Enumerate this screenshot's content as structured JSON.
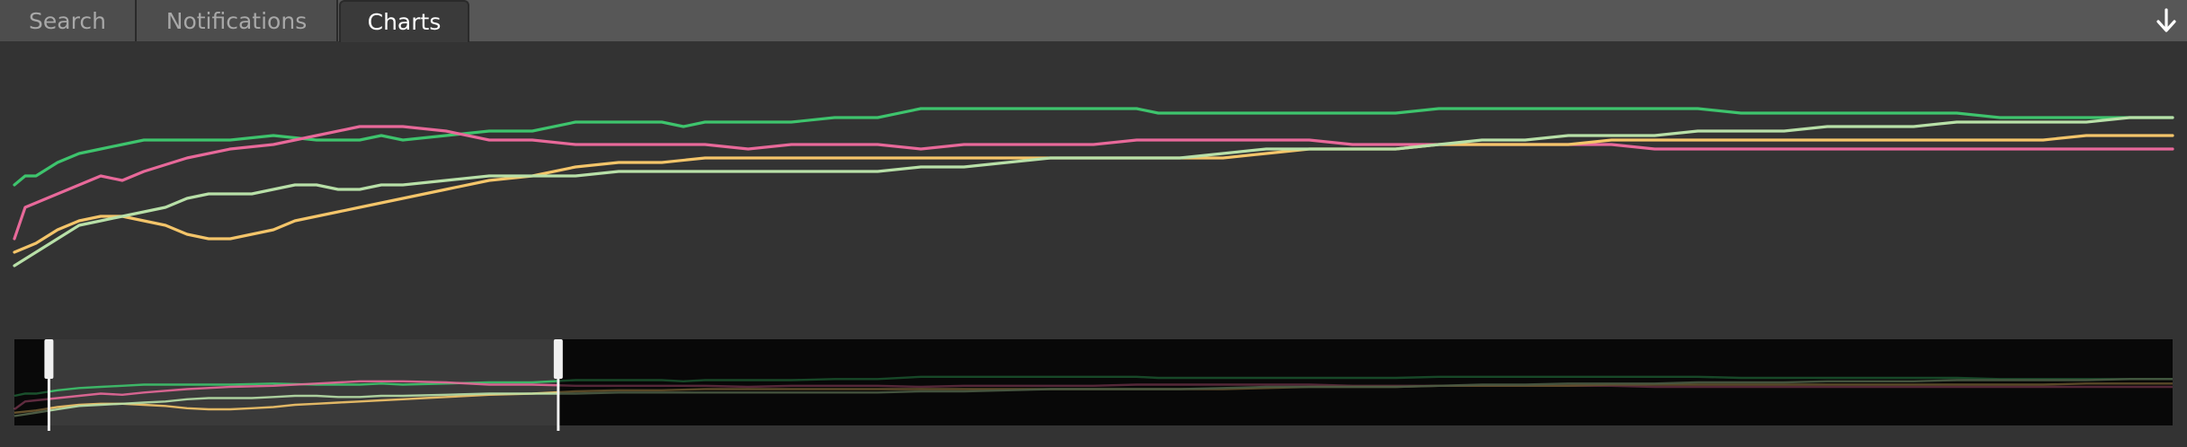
{
  "tabs": [
    {
      "label": "Search",
      "active": false
    },
    {
      "label": "Notifications",
      "active": false
    },
    {
      "label": "Charts",
      "active": true
    }
  ],
  "toolbar": {
    "download_icon": "arrow-down-icon"
  },
  "colors": {
    "background": "#333333",
    "tab_bar": "#575757",
    "overview_bg": "#161616",
    "handle": "#f0f0f0"
  },
  "chart_data": {
    "type": "line",
    "title": "",
    "xlabel": "",
    "ylabel": "",
    "x_range": [
      0,
      100
    ],
    "ylim": [
      0,
      100
    ],
    "grid": false,
    "legend": "none",
    "series": [
      {
        "color": "#3ec46d",
        "points": [
          [
            0,
            70
          ],
          [
            0.5,
            72
          ],
          [
            1,
            72
          ],
          [
            2,
            75
          ],
          [
            3,
            77
          ],
          [
            4,
            78
          ],
          [
            5,
            79
          ],
          [
            6,
            80
          ],
          [
            8,
            80
          ],
          [
            10,
            80
          ],
          [
            12,
            81
          ],
          [
            14,
            80
          ],
          [
            16,
            80
          ],
          [
            17,
            81
          ],
          [
            18,
            80
          ],
          [
            20,
            81
          ],
          [
            22,
            82
          ],
          [
            24,
            82
          ],
          [
            26,
            84
          ],
          [
            28,
            84
          ],
          [
            30,
            84
          ],
          [
            31,
            83
          ],
          [
            32,
            84
          ],
          [
            34,
            84
          ],
          [
            36,
            84
          ],
          [
            38,
            85
          ],
          [
            40,
            85
          ],
          [
            42,
            87
          ],
          [
            44,
            87
          ],
          [
            46,
            87
          ],
          [
            48,
            87
          ],
          [
            50,
            87
          ],
          [
            52,
            87
          ],
          [
            53,
            86
          ],
          [
            54,
            86
          ],
          [
            56,
            86
          ],
          [
            58,
            86
          ],
          [
            60,
            86
          ],
          [
            62,
            86
          ],
          [
            64,
            86
          ],
          [
            66,
            87
          ],
          [
            68,
            87
          ],
          [
            70,
            87
          ],
          [
            72,
            87
          ],
          [
            74,
            87
          ],
          [
            76,
            87
          ],
          [
            78,
            87
          ],
          [
            80,
            86
          ],
          [
            82,
            86
          ],
          [
            84,
            86
          ],
          [
            86,
            86
          ],
          [
            88,
            86
          ],
          [
            90,
            86
          ],
          [
            92,
            85
          ],
          [
            94,
            85
          ],
          [
            96,
            85
          ],
          [
            98,
            85
          ],
          [
            100,
            85
          ]
        ]
      },
      {
        "color": "#e8699a",
        "points": [
          [
            0,
            58
          ],
          [
            0.5,
            65
          ],
          [
            1,
            66
          ],
          [
            2,
            68
          ],
          [
            3,
            70
          ],
          [
            4,
            72
          ],
          [
            5,
            71
          ],
          [
            6,
            73
          ],
          [
            8,
            76
          ],
          [
            10,
            78
          ],
          [
            12,
            79
          ],
          [
            14,
            81
          ],
          [
            16,
            83
          ],
          [
            18,
            83
          ],
          [
            20,
            82
          ],
          [
            22,
            80
          ],
          [
            24,
            80
          ],
          [
            26,
            79
          ],
          [
            28,
            79
          ],
          [
            30,
            79
          ],
          [
            32,
            79
          ],
          [
            34,
            78
          ],
          [
            36,
            79
          ],
          [
            38,
            79
          ],
          [
            40,
            79
          ],
          [
            42,
            78
          ],
          [
            44,
            79
          ],
          [
            46,
            79
          ],
          [
            48,
            79
          ],
          [
            50,
            79
          ],
          [
            52,
            80
          ],
          [
            54,
            80
          ],
          [
            56,
            80
          ],
          [
            58,
            80
          ],
          [
            60,
            80
          ],
          [
            62,
            79
          ],
          [
            64,
            79
          ],
          [
            66,
            79
          ],
          [
            68,
            79
          ],
          [
            70,
            79
          ],
          [
            72,
            79
          ],
          [
            74,
            79
          ],
          [
            76,
            78
          ],
          [
            78,
            78
          ],
          [
            80,
            78
          ],
          [
            82,
            78
          ],
          [
            84,
            78
          ],
          [
            86,
            78
          ],
          [
            88,
            78
          ],
          [
            90,
            78
          ],
          [
            92,
            78
          ],
          [
            94,
            78
          ],
          [
            96,
            78
          ],
          [
            98,
            78
          ],
          [
            100,
            78
          ]
        ]
      },
      {
        "color": "#f4c56a",
        "points": [
          [
            0,
            55
          ],
          [
            1,
            57
          ],
          [
            2,
            60
          ],
          [
            3,
            62
          ],
          [
            4,
            63
          ],
          [
            5,
            63
          ],
          [
            6,
            62
          ],
          [
            7,
            61
          ],
          [
            8,
            59
          ],
          [
            9,
            58
          ],
          [
            10,
            58
          ],
          [
            11,
            59
          ],
          [
            12,
            60
          ],
          [
            13,
            62
          ],
          [
            14,
            63
          ],
          [
            15,
            64
          ],
          [
            16,
            65
          ],
          [
            17,
            66
          ],
          [
            18,
            67
          ],
          [
            19,
            68
          ],
          [
            20,
            69
          ],
          [
            22,
            71
          ],
          [
            24,
            72
          ],
          [
            26,
            74
          ],
          [
            28,
            75
          ],
          [
            30,
            75
          ],
          [
            32,
            76
          ],
          [
            34,
            76
          ],
          [
            36,
            76
          ],
          [
            38,
            76
          ],
          [
            40,
            76
          ],
          [
            42,
            76
          ],
          [
            44,
            76
          ],
          [
            46,
            76
          ],
          [
            48,
            76
          ],
          [
            50,
            76
          ],
          [
            52,
            76
          ],
          [
            54,
            76
          ],
          [
            56,
            76
          ],
          [
            58,
            77
          ],
          [
            60,
            78
          ],
          [
            62,
            78
          ],
          [
            64,
            78
          ],
          [
            66,
            79
          ],
          [
            68,
            79
          ],
          [
            70,
            79
          ],
          [
            72,
            79
          ],
          [
            74,
            80
          ],
          [
            76,
            80
          ],
          [
            78,
            80
          ],
          [
            80,
            80
          ],
          [
            82,
            80
          ],
          [
            84,
            80
          ],
          [
            86,
            80
          ],
          [
            88,
            80
          ],
          [
            90,
            80
          ],
          [
            92,
            80
          ],
          [
            94,
            80
          ],
          [
            96,
            81
          ],
          [
            98,
            81
          ],
          [
            100,
            81
          ]
        ]
      },
      {
        "color": "#b8e0a8",
        "points": [
          [
            0,
            52
          ],
          [
            1,
            55
          ],
          [
            2,
            58
          ],
          [
            3,
            61
          ],
          [
            4,
            62
          ],
          [
            5,
            63
          ],
          [
            6,
            64
          ],
          [
            7,
            65
          ],
          [
            8,
            67
          ],
          [
            9,
            68
          ],
          [
            10,
            68
          ],
          [
            11,
            68
          ],
          [
            12,
            69
          ],
          [
            13,
            70
          ],
          [
            14,
            70
          ],
          [
            15,
            69
          ],
          [
            16,
            69
          ],
          [
            17,
            70
          ],
          [
            18,
            70
          ],
          [
            20,
            71
          ],
          [
            22,
            72
          ],
          [
            24,
            72
          ],
          [
            26,
            72
          ],
          [
            28,
            73
          ],
          [
            30,
            73
          ],
          [
            32,
            73
          ],
          [
            34,
            73
          ],
          [
            36,
            73
          ],
          [
            38,
            73
          ],
          [
            40,
            73
          ],
          [
            42,
            74
          ],
          [
            44,
            74
          ],
          [
            46,
            75
          ],
          [
            48,
            76
          ],
          [
            50,
            76
          ],
          [
            52,
            76
          ],
          [
            54,
            76
          ],
          [
            56,
            77
          ],
          [
            58,
            78
          ],
          [
            60,
            78
          ],
          [
            62,
            78
          ],
          [
            64,
            78
          ],
          [
            66,
            79
          ],
          [
            68,
            80
          ],
          [
            70,
            80
          ],
          [
            72,
            81
          ],
          [
            74,
            81
          ],
          [
            76,
            81
          ],
          [
            78,
            82
          ],
          [
            80,
            82
          ],
          [
            82,
            82
          ],
          [
            84,
            83
          ],
          [
            86,
            83
          ],
          [
            88,
            83
          ],
          [
            90,
            84
          ],
          [
            92,
            84
          ],
          [
            94,
            84
          ],
          [
            96,
            84
          ],
          [
            98,
            85
          ],
          [
            100,
            85
          ]
        ]
      }
    ],
    "overview": {
      "selection_start": 1.6,
      "selection_end": 25.2
    }
  }
}
